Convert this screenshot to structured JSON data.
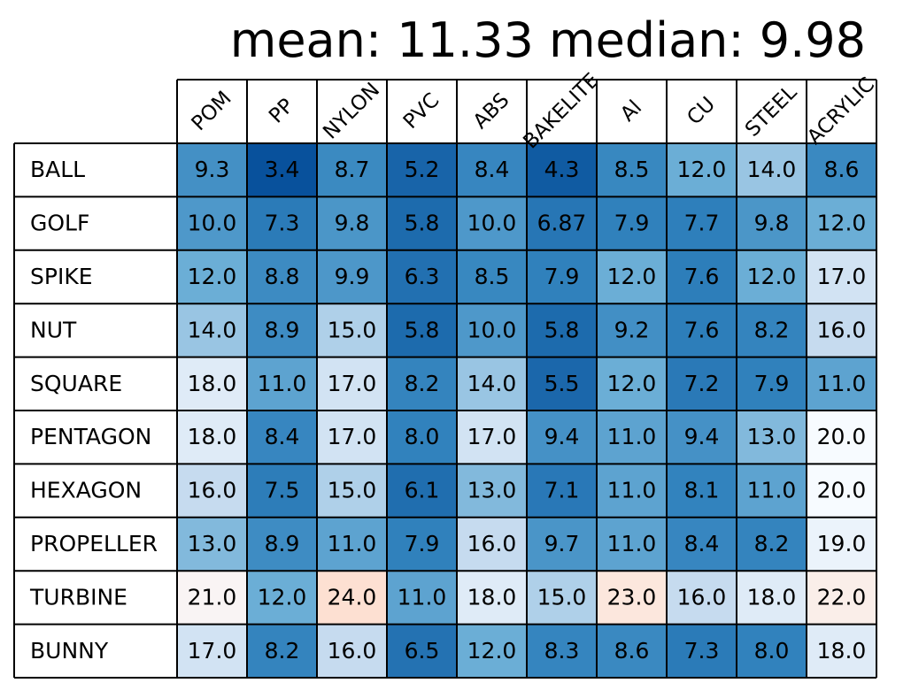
{
  "chart_data": {
    "type": "heatmap",
    "title": "mean: 11.33 median: 9.98",
    "columns": [
      "POM",
      "PP",
      "NYLON",
      "PVC",
      "ABS",
      "BAKELITE",
      "Al",
      "CU",
      "STEEL",
      "ACRYLIC"
    ],
    "rows": [
      "BALL",
      "GOLF",
      "SPIKE",
      "NUT",
      "SQUARE",
      "PENTAGON",
      "HEXAGON",
      "PROPELLER",
      "TURBINE",
      "BUNNY"
    ],
    "cell_labels": [
      [
        "9.3",
        "3.4",
        "8.7",
        "5.2",
        "8.4",
        "4.3",
        "8.5",
        "12.0",
        "14.0",
        "8.6"
      ],
      [
        "10.0",
        "7.3",
        "9.8",
        "5.8",
        "10.0",
        "6.87",
        "7.9",
        "7.7",
        "9.8",
        "12.0"
      ],
      [
        "12.0",
        "8.8",
        "9.9",
        "6.3",
        "8.5",
        "7.9",
        "12.0",
        "7.6",
        "12.0",
        "17.0"
      ],
      [
        "14.0",
        "8.9",
        "15.0",
        "5.8",
        "10.0",
        "5.8",
        "9.2",
        "7.6",
        "8.2",
        "16.0"
      ],
      [
        "18.0",
        "11.0",
        "17.0",
        "8.2",
        "14.0",
        "5.5",
        "12.0",
        "7.2",
        "7.9",
        "11.0"
      ],
      [
        "18.0",
        "8.4",
        "17.0",
        "8.0",
        "17.0",
        "9.4",
        "11.0",
        "9.4",
        "13.0",
        "20.0"
      ],
      [
        "16.0",
        "7.5",
        "15.0",
        "6.1",
        "13.0",
        "7.1",
        "11.0",
        "8.1",
        "11.0",
        "20.0"
      ],
      [
        "13.0",
        "8.9",
        "11.0",
        "7.9",
        "16.0",
        "9.7",
        "11.0",
        "8.4",
        "8.2",
        "19.0"
      ],
      [
        "21.0",
        "12.0",
        "24.0",
        "11.0",
        "18.0",
        "15.0",
        "23.0",
        "16.0",
        "18.0",
        "22.0"
      ],
      [
        "17.0",
        "8.2",
        "16.0",
        "6.5",
        "12.0",
        "8.3",
        "8.6",
        "7.3",
        "8.0",
        "18.0"
      ]
    ],
    "values": [
      [
        9.3,
        3.4,
        8.7,
        5.2,
        8.4,
        4.3,
        8.5,
        12.0,
        14.0,
        8.6
      ],
      [
        10.0,
        7.3,
        9.8,
        5.8,
        10.0,
        6.87,
        7.9,
        7.7,
        9.8,
        12.0
      ],
      [
        12.0,
        8.8,
        9.9,
        6.3,
        8.5,
        7.9,
        12.0,
        7.6,
        12.0,
        17.0
      ],
      [
        14.0,
        8.9,
        15.0,
        5.8,
        10.0,
        5.8,
        9.2,
        7.6,
        8.2,
        16.0
      ],
      [
        18.0,
        11.0,
        17.0,
        8.2,
        14.0,
        5.5,
        12.0,
        7.2,
        7.9,
        11.0
      ],
      [
        18.0,
        8.4,
        17.0,
        8.0,
        17.0,
        9.4,
        11.0,
        9.4,
        13.0,
        20.0
      ],
      [
        16.0,
        7.5,
        15.0,
        6.1,
        13.0,
        7.1,
        11.0,
        8.1,
        11.0,
        20.0
      ],
      [
        13.0,
        8.9,
        11.0,
        7.9,
        16.0,
        9.7,
        11.0,
        8.4,
        8.2,
        19.0
      ],
      [
        21.0,
        12.0,
        24.0,
        11.0,
        18.0,
        15.0,
        23.0,
        16.0,
        18.0,
        22.0
      ],
      [
        17.0,
        8.2,
        16.0,
        6.5,
        12.0,
        8.3,
        8.6,
        7.3,
        8.0,
        18.0
      ]
    ],
    "color_scale": {
      "stops": [
        {
          "value": 3.4,
          "color": "#08519c"
        },
        {
          "value": 8.0,
          "color": "#3182bd"
        },
        {
          "value": 12.0,
          "color": "#6baed6"
        },
        {
          "value": 16.0,
          "color": "#c6dbef"
        },
        {
          "value": 20.0,
          "color": "#f7fbff"
        },
        {
          "value": 24.0,
          "color": "#fde0d2"
        }
      ]
    },
    "grid": true,
    "legend": "none"
  }
}
